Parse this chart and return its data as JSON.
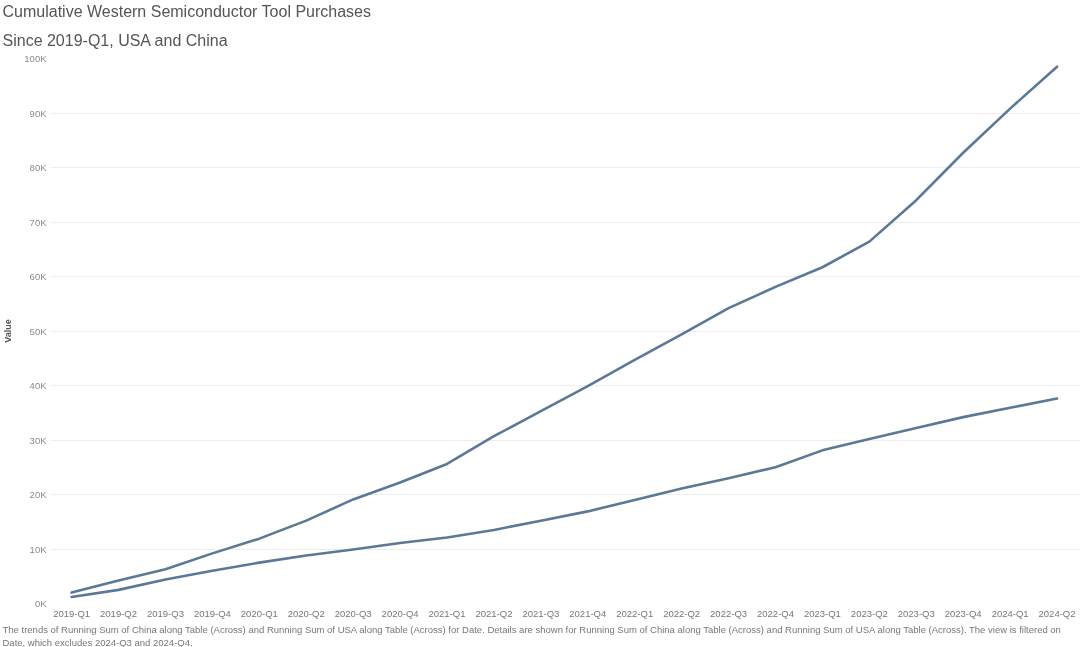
{
  "chart_data": {
    "type": "line",
    "title": "Cumulative Western Semiconductor Tool Purchases",
    "subtitle": "Since 2019-Q1, USA and China",
    "ylabel": "Value",
    "annotations": [
      "The trends of Running Sum of China along Table (Across) and Running Sum of USA along Table (Across) for Date.  Details are shown for Running Sum of China along Table (Across) and Running Sum of USA along Table (Across). The view is filtered on Date, which excludes 2024-Q3 and 2024-Q4."
    ],
    "categories": [
      "2019-Q1",
      "2019-Q2",
      "2019-Q3",
      "2019-Q4",
      "2020-Q1",
      "2020-Q2",
      "2020-Q3",
      "2020-Q4",
      "2021-Q1",
      "2021-Q2",
      "2021-Q3",
      "2021-Q4",
      "2022-Q1",
      "2022-Q2",
      "2022-Q3",
      "2022-Q4",
      "2023-Q1",
      "2023-Q2",
      "2023-Q3",
      "2023-Q4",
      "2024-Q1",
      "2024-Q2"
    ],
    "series": [
      {
        "color": "#5b7896",
        "values": [
          2000,
          4200,
          6300,
          9200,
          11900,
          15200,
          19100,
          22200,
          25600,
          30700,
          35300,
          39900,
          44700,
          49400,
          54200,
          58100,
          61700,
          66400,
          74000,
          82700,
          90800,
          98500
        ]
      },
      {
        "color": "#5b7896",
        "values": [
          1200,
          2500,
          4400,
          6000,
          7500,
          8800,
          9900,
          11100,
          12100,
          13500,
          15200,
          16900,
          19000,
          21100,
          23000,
          25000,
          28100,
          30200,
          32200,
          34200,
          35900,
          37600
        ]
      }
    ],
    "ylim": [
      0,
      100000
    ],
    "yticks": [
      {
        "value": 0,
        "label": "0K"
      },
      {
        "value": 10000,
        "label": "10K"
      },
      {
        "value": 20000,
        "label": "20K"
      },
      {
        "value": 30000,
        "label": "30K"
      },
      {
        "value": 40000,
        "label": "40K"
      },
      {
        "value": 50000,
        "label": "50K"
      },
      {
        "value": 60000,
        "label": "60K"
      },
      {
        "value": 70000,
        "label": "70K"
      },
      {
        "value": 80000,
        "label": "80K"
      },
      {
        "value": 90000,
        "label": "90K"
      },
      {
        "value": 100000,
        "label": "100K"
      }
    ],
    "grid": "y"
  }
}
